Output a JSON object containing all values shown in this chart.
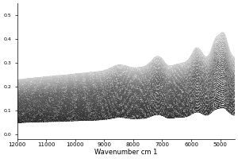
{
  "title": "",
  "xlabel": "Wavenumber cm 1",
  "ylabel": "",
  "x_min": 4500,
  "x_max": 12000,
  "x_ticks": [
    12000,
    11000,
    10000,
    9000,
    8000,
    7000,
    6000,
    5000
  ],
  "y_min": -0.02,
  "y_max": 0.55,
  "n_spectra": 60,
  "background_color": "#ffffff",
  "seed": 7
}
